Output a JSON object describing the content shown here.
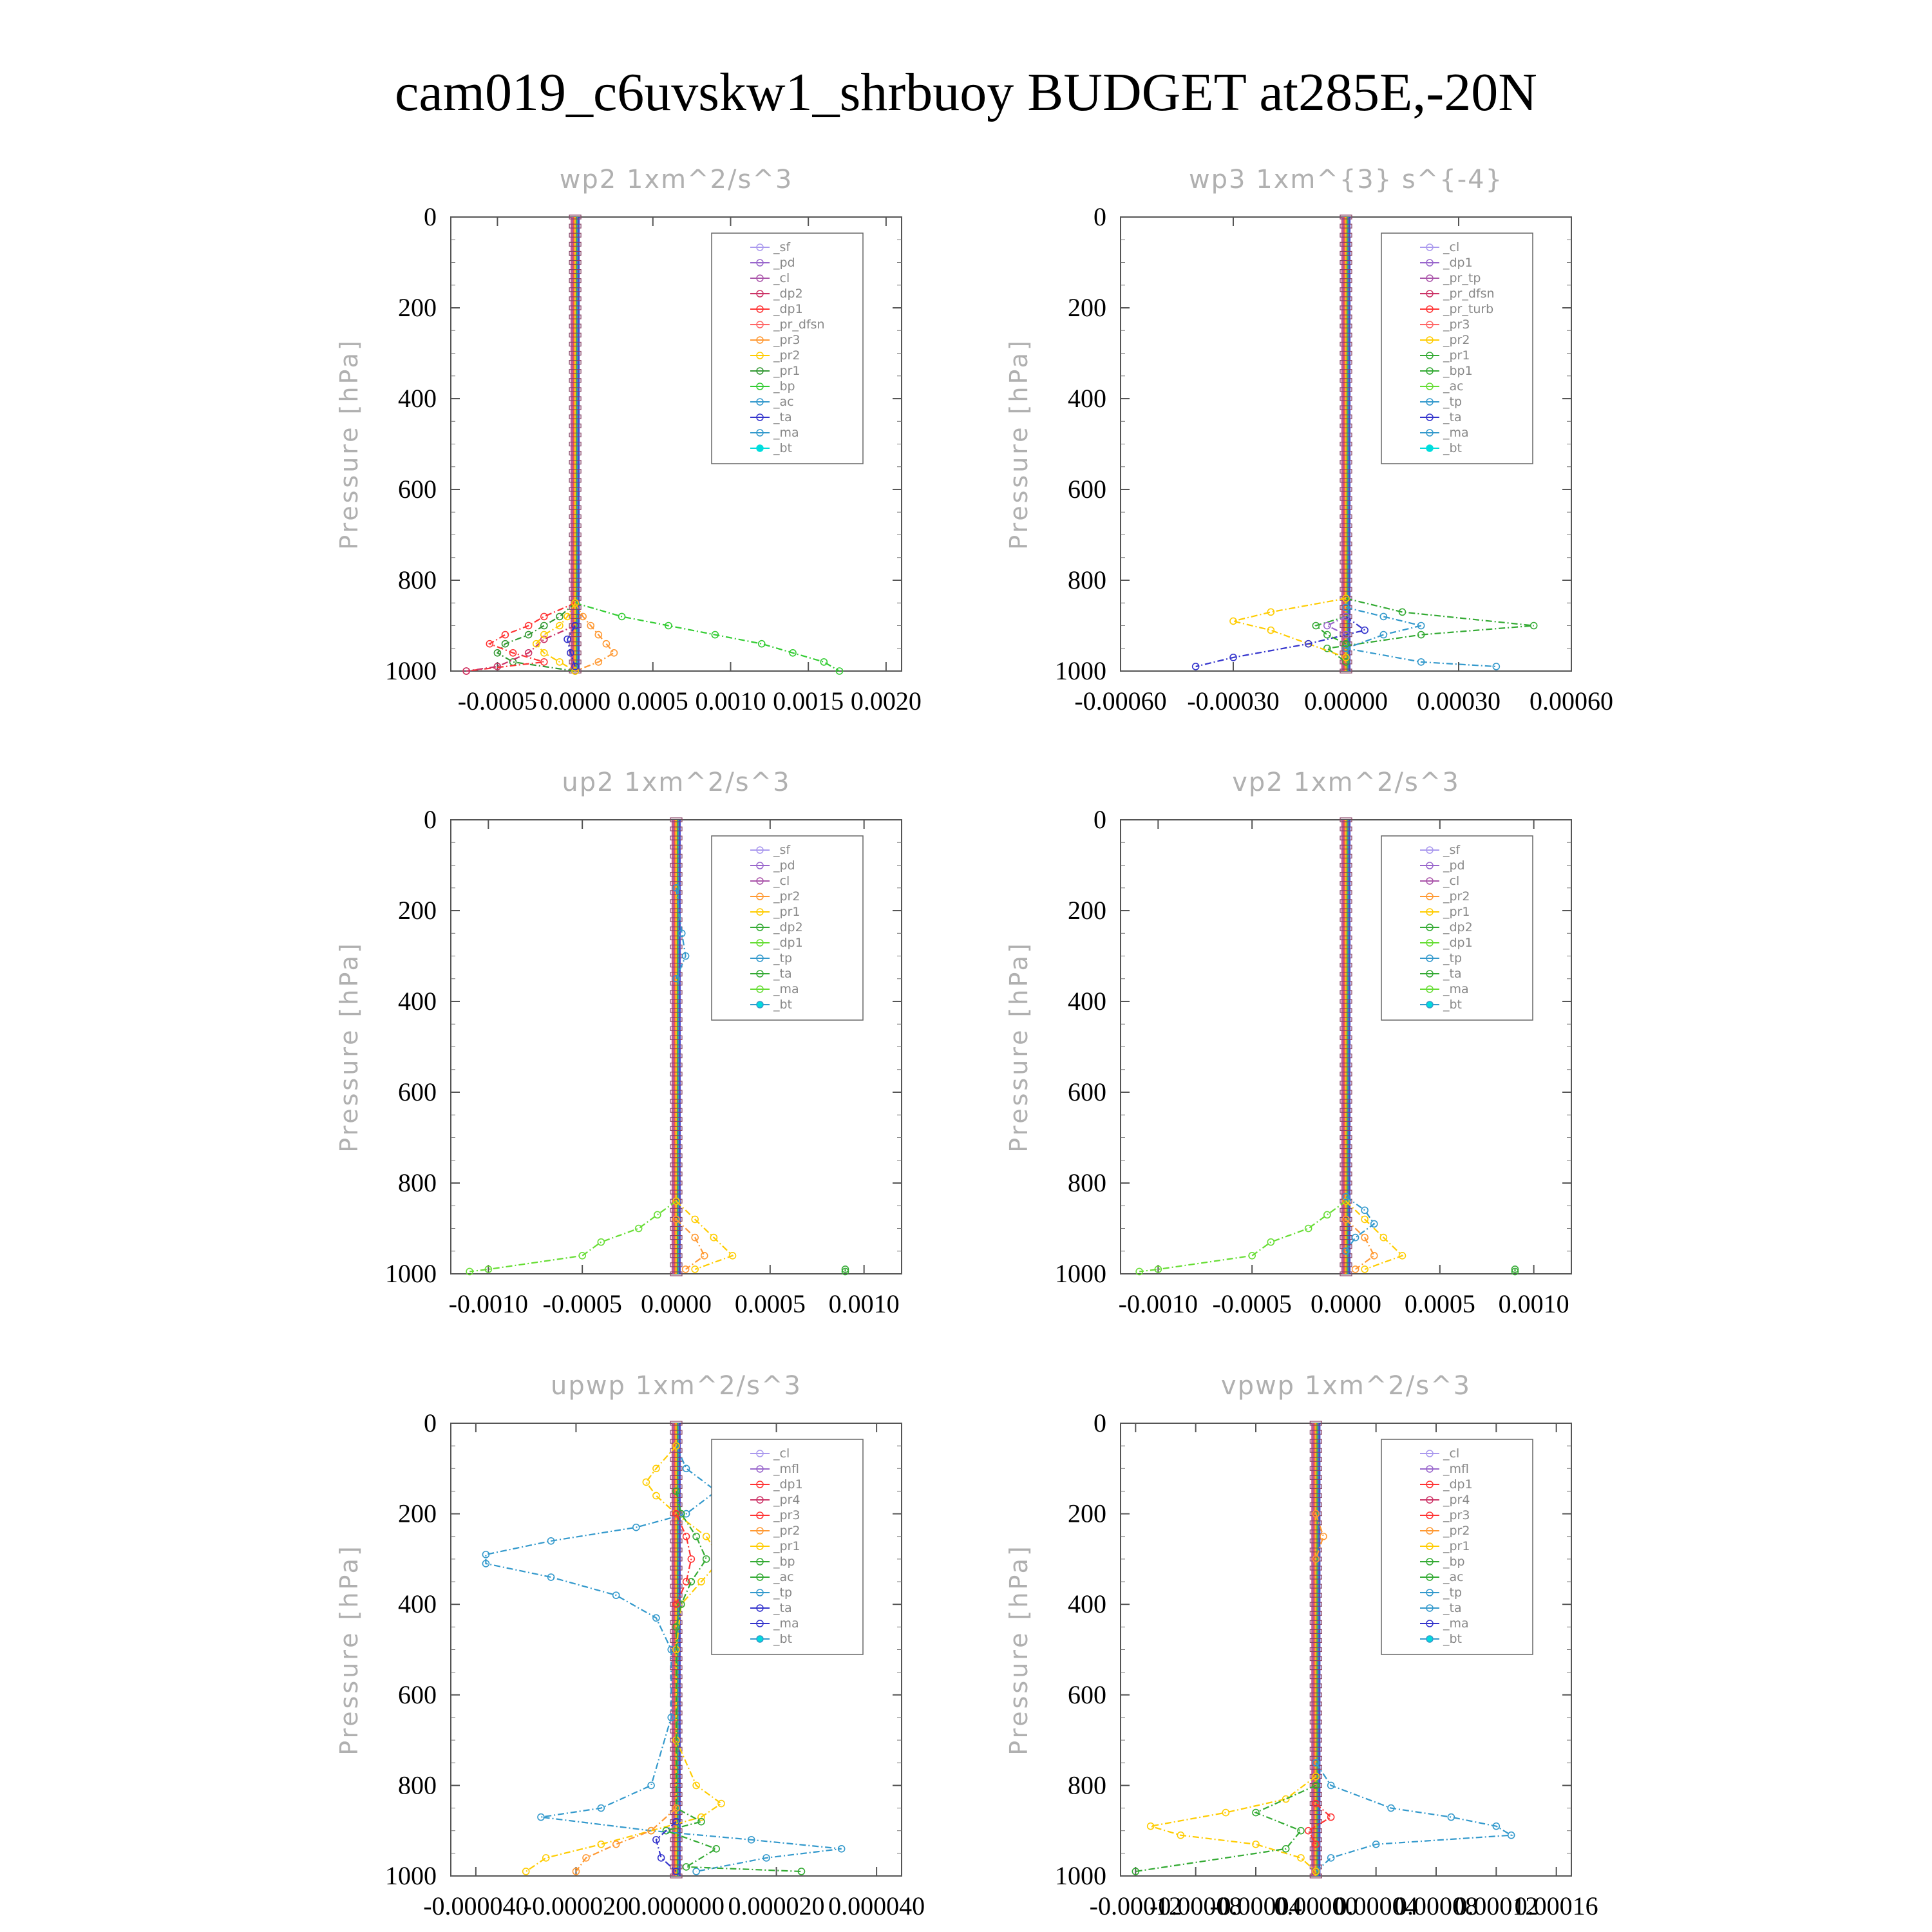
{
  "figure": {
    "title": "cam019_c6uvskw1_shrbuoy  BUDGET at285E,-20N"
  },
  "chart_data": [
    {
      "type": "line",
      "title": "wp2  1xm^2/s^3",
      "ylabel": "Pressure [hPa]",
      "xlim": [
        -0.0008,
        0.0021
      ],
      "ylim": [
        1000,
        0
      ],
      "yticks": [
        "0",
        "200",
        "400",
        "600",
        "800",
        "1000"
      ],
      "xticks": [
        "-0.0005",
        "0.0000",
        "0.0005",
        "0.0010",
        "0.0015",
        "0.0020"
      ],
      "xtick_values": [
        -0.0005,
        0.0,
        0.0005,
        0.001,
        0.0015,
        0.002
      ],
      "legend": [
        "_sf",
        "_pd",
        "_cl",
        "_dp2",
        "_dp1",
        "_pr_dfsn",
        "_pr3",
        "_pr2",
        "_pr1",
        "_bp",
        "_ac",
        "_ta",
        "_ma",
        "_bt"
      ],
      "series": [
        {
          "name": "_bp",
          "color": "#33cc33",
          "p": [
            850,
            880,
            900,
            920,
            940,
            960,
            980,
            1000
          ],
          "x": [
            0,
            0.0003,
            0.0006,
            0.0009,
            0.0012,
            0.0014,
            0.0016,
            0.0017
          ]
        },
        {
          "name": "_pr1",
          "color": "#339933",
          "p": [
            850,
            880,
            900,
            920,
            940,
            960,
            980,
            1000
          ],
          "x": [
            0,
            -0.0001,
            -0.0002,
            -0.0003,
            -0.00045,
            -0.0005,
            -0.0004,
            0
          ]
        },
        {
          "name": "_dp1",
          "color": "#ff3333",
          "p": [
            850,
            880,
            900,
            920,
            940,
            960,
            980,
            1000
          ],
          "x": [
            0,
            -0.0002,
            -0.0003,
            -0.00045,
            -0.00055,
            -0.0004,
            -0.0002,
            -0.0007
          ]
        },
        {
          "name": "_dp2",
          "color": "#cc3366",
          "p": [
            900,
            930,
            960,
            990,
            1000
          ],
          "x": [
            0,
            -0.0002,
            -0.0003,
            -0.0005,
            -0.0007
          ]
        },
        {
          "name": "_pr3",
          "color": "#ff9933",
          "p": [
            850,
            880,
            900,
            920,
            940,
            960,
            980,
            1000
          ],
          "x": [
            0,
            5e-05,
            0.0001,
            0.00015,
            0.0002,
            0.00025,
            0.00015,
            0
          ]
        },
        {
          "name": "_pr2",
          "color": "#ffcc00",
          "p": [
            850,
            880,
            900,
            920,
            940,
            960,
            980,
            1000
          ],
          "x": [
            0,
            -5e-05,
            -0.0001,
            -0.0002,
            -0.00025,
            -0.0002,
            -0.0001,
            0
          ]
        },
        {
          "name": "_ta",
          "color": "#3333cc",
          "p": [
            900,
            930,
            960,
            990
          ],
          "x": [
            0,
            -5e-05,
            -3e-05,
            0
          ]
        }
      ]
    },
    {
      "type": "line",
      "title": "wp3  1xm^{3} s^{-4}",
      "ylabel": "Pressure [hPa]",
      "xlim": [
        -0.0006,
        0.0006
      ],
      "ylim": [
        1000,
        0
      ],
      "yticks": [
        "0",
        "200",
        "400",
        "600",
        "800",
        "1000"
      ],
      "xticks": [
        "-0.00060",
        "-0.00030",
        "0.00000",
        "0.00030",
        "0.00060"
      ],
      "xtick_values": [
        -0.0006,
        -0.0003,
        0.0,
        0.0003,
        0.0006
      ],
      "legend": [
        "_cl",
        "_dp1",
        "_pr_tp",
        "_pr_dfsn",
        "_pr_turb",
        "_pr3",
        "_pr2",
        "_pr1",
        "_bp1",
        "_ac",
        "_tp",
        "_ta",
        "_ma",
        "_bt"
      ],
      "series": [
        {
          "name": "_bp1",
          "color": "#33aa33",
          "p": [
            840,
            870,
            900,
            920,
            950,
            980
          ],
          "x": [
            0,
            0.00015,
            0.0005,
            0.0002,
            -5e-05,
            0
          ]
        },
        {
          "name": "_pr2",
          "color": "#ffcc00",
          "p": [
            840,
            870,
            890,
            910,
            940,
            970
          ],
          "x": [
            0,
            -0.0002,
            -0.0003,
            -0.0002,
            -0.0001,
            0
          ]
        },
        {
          "name": "_tp",
          "color": "#3399cc",
          "p": [
            860,
            880,
            900,
            920,
            950,
            980,
            990
          ],
          "x": [
            0,
            0.0001,
            0.0002,
            0.0001,
            0,
            0.0002,
            0.0004
          ]
        },
        {
          "name": "_ta",
          "color": "#3333cc",
          "p": [
            880,
            910,
            940,
            970,
            990
          ],
          "x": [
            0,
            5e-05,
            -0.0001,
            -0.0003,
            -0.0004
          ]
        },
        {
          "name": "_pr1",
          "color": "#33aa33",
          "p": [
            880,
            900,
            920,
            940
          ],
          "x": [
            0,
            -8e-05,
            -5e-05,
            0
          ]
        },
        {
          "name": "_dp1",
          "color": "#9966cc",
          "p": [
            880,
            900,
            920
          ],
          "x": [
            0,
            -5e-05,
            0
          ]
        }
      ]
    },
    {
      "type": "line",
      "title": "up2  1xm^2/s^3",
      "ylabel": "Pressure [hPa]",
      "xlim": [
        -0.0012,
        0.0012
      ],
      "ylim": [
        1000,
        0
      ],
      "yticks": [
        "0",
        "200",
        "400",
        "600",
        "800",
        "1000"
      ],
      "xticks": [
        "-0.0010",
        "-0.0005",
        "0.0000",
        "0.0005",
        "0.0010"
      ],
      "xtick_values": [
        -0.001,
        -0.0005,
        0.0,
        0.0005,
        0.001
      ],
      "legend": [
        "_sf",
        "_pd",
        "_cl",
        "_pr2",
        "_pr1",
        "_dp2",
        "_dp1",
        "_tp",
        "_ta",
        "_ma",
        "_bt"
      ],
      "series": [
        {
          "name": "_dp1",
          "color": "#66dd33",
          "p": [
            840,
            870,
            900,
            930,
            960,
            990,
            995
          ],
          "x": [
            0,
            -0.0001,
            -0.0002,
            -0.0004,
            -0.0005,
            -0.001,
            -0.0011
          ]
        },
        {
          "name": "_dp2",
          "color": "#33aa33",
          "p": [
            990,
            995
          ],
          "x": [
            0.0009,
            0.0009
          ]
        },
        {
          "name": "_pr1",
          "color": "#ffcc00",
          "p": [
            840,
            880,
            920,
            960,
            990
          ],
          "x": [
            0,
            0.0001,
            0.0002,
            0.0003,
            0.0001
          ]
        },
        {
          "name": "_pr2",
          "color": "#ff9933",
          "p": [
            880,
            920,
            960,
            990
          ],
          "x": [
            0,
            0.0001,
            0.00015,
            5e-05
          ]
        },
        {
          "name": "_tp",
          "color": "#3399cc",
          "p": [
            150,
            250,
            300,
            350
          ],
          "x": [
            0,
            3e-05,
            5e-05,
            0
          ]
        }
      ]
    },
    {
      "type": "line",
      "title": "vp2  1xm^2/s^3",
      "ylabel": "Pressure [hPa]",
      "xlim": [
        -0.0012,
        0.0012
      ],
      "ylim": [
        1000,
        0
      ],
      "yticks": [
        "0",
        "200",
        "400",
        "600",
        "800",
        "1000"
      ],
      "xticks": [
        "-0.0010",
        "-0.0005",
        "0.0000",
        "0.0005",
        "0.0010"
      ],
      "xtick_values": [
        -0.001,
        -0.0005,
        0.0,
        0.0005,
        0.001
      ],
      "legend": [
        "_sf",
        "_pd",
        "_cl",
        "_pr2",
        "_pr1",
        "_dp2",
        "_dp1",
        "_tp",
        "_ta",
        "_ma",
        "_bt"
      ],
      "series": [
        {
          "name": "_dp1",
          "color": "#66dd33",
          "p": [
            840,
            870,
            900,
            930,
            960,
            990,
            995
          ],
          "x": [
            0,
            -0.0001,
            -0.0002,
            -0.0004,
            -0.0005,
            -0.001,
            -0.0011
          ]
        },
        {
          "name": "_dp2",
          "color": "#33aa33",
          "p": [
            990,
            995
          ],
          "x": [
            0.0009,
            0.0009
          ]
        },
        {
          "name": "_pr1",
          "color": "#ffcc00",
          "p": [
            840,
            880,
            920,
            960,
            990
          ],
          "x": [
            0,
            0.0001,
            0.0002,
            0.0003,
            0.0001
          ]
        },
        {
          "name": "_pr2",
          "color": "#ff9933",
          "p": [
            880,
            920,
            960,
            990
          ],
          "x": [
            0,
            0.0001,
            0.00015,
            5e-05
          ]
        },
        {
          "name": "_tp",
          "color": "#3399cc",
          "p": [
            830,
            860,
            890,
            920,
            950
          ],
          "x": [
            0,
            0.0001,
            0.00015,
            5e-05,
            0
          ]
        }
      ]
    },
    {
      "type": "line",
      "title": "upwp  1xm^2/s^3",
      "ylabel": "Pressure [hPa]",
      "xlim": [
        -4.5e-05,
        4.5e-05
      ],
      "ylim": [
        1000,
        0
      ],
      "yticks": [
        "0",
        "200",
        "400",
        "600",
        "800",
        "1000"
      ],
      "xticks": [
        "-0.000040",
        "-0.000020",
        "0.000000",
        "0.000020",
        "0.000040"
      ],
      "xtick_values": [
        -4e-05,
        -2e-05,
        0.0,
        2e-05,
        4e-05
      ],
      "legend": [
        "_cl",
        "_mfl",
        "_dp1",
        "_pr4",
        "_pr3",
        "_pr2",
        "_pr1",
        "_bp",
        "_ac",
        "_tp",
        "_ta",
        "_ma",
        "_bt"
      ],
      "series": [
        {
          "name": "_tp",
          "color": "#3399cc",
          "p": [
            50,
            100,
            150,
            200,
            230,
            260,
            290,
            310,
            340,
            380,
            430,
            500,
            650,
            800,
            850,
            870,
            900,
            920,
            940,
            960,
            990
          ],
          "x": [
            0,
            2e-06,
            8e-06,
            2e-06,
            -8e-06,
            -2.5e-05,
            -3.8e-05,
            -3.8e-05,
            -2.5e-05,
            -1.2e-05,
            -4e-06,
            -1e-06,
            -1e-06,
            -5e-06,
            -1.5e-05,
            -2.7e-05,
            -5e-06,
            1.5e-05,
            3.3e-05,
            1.8e-05,
            4e-06
          ]
        },
        {
          "name": "_pr1",
          "color": "#ffcc00",
          "p": [
            50,
            100,
            130,
            160,
            200,
            250,
            300,
            350,
            400,
            500,
            700,
            800,
            840,
            870,
            900,
            930,
            960,
            990
          ],
          "x": [
            0,
            -4e-06,
            -6e-06,
            -4e-06,
            0,
            6e-06,
            9e-06,
            5e-06,
            1e-06,
            0,
            0,
            4e-06,
            9e-06,
            5e-06,
            -5e-06,
            -1.5e-05,
            -2.6e-05,
            -3e-05
          ]
        },
        {
          "name": "_bp",
          "color": "#33aa33",
          "p": [
            150,
            200,
            250,
            300,
            350,
            400,
            450,
            850,
            880,
            900,
            940,
            980,
            990
          ],
          "x": [
            0,
            1e-06,
            4e-06,
            6e-06,
            3e-06,
            1e-06,
            0,
            0,
            5e-06,
            -2e-06,
            8e-06,
            2e-06,
            2.5e-05
          ]
        },
        {
          "name": "_pr2",
          "color": "#ff9933",
          "p": [
            850,
            900,
            930,
            960,
            990
          ],
          "x": [
            0,
            -5e-06,
            -1.2e-05,
            -1.8e-05,
            -2e-05
          ]
        },
        {
          "name": "_dp1",
          "color": "#ff3333",
          "p": [
            200,
            250,
            300,
            350,
            400
          ],
          "x": [
            0,
            2e-06,
            3e-06,
            2e-06,
            0
          ]
        },
        {
          "name": "_ta",
          "color": "#3333cc",
          "p": [
            880,
            920,
            960,
            990
          ],
          "x": [
            0,
            -4e-06,
            -3e-06,
            0
          ]
        }
      ]
    },
    {
      "type": "line",
      "title": "vpwp  1xm^2/s^3",
      "ylabel": "Pressure [hPa]",
      "xlim": [
        -0.00013,
        0.00017
      ],
      "ylim": [
        1000,
        0
      ],
      "yticks": [
        "0",
        "200",
        "400",
        "600",
        "800",
        "1000"
      ],
      "xticks": [
        "-0.00012",
        "-0.00008",
        "-0.00004",
        "0.00000",
        "0.00004",
        "0.00008",
        "0.00012",
        "0.00016"
      ],
      "xtick_values": [
        -0.00012,
        -8e-05,
        -4e-05,
        0.0,
        4e-05,
        8e-05,
        0.00012,
        0.00016
      ],
      "legend": [
        "_cl",
        "_mfl",
        "_dp1",
        "_pr4",
        "_pr3",
        "_pr2",
        "_pr1",
        "_bp",
        "_ac",
        "_tp",
        "_ta",
        "_ma",
        "_bt"
      ],
      "series": [
        {
          "name": "_tp",
          "color": "#3399cc",
          "p": [
            750,
            800,
            850,
            870,
            890,
            910,
            930,
            960,
            990
          ],
          "x": [
            0,
            1e-05,
            5e-05,
            9e-05,
            0.00012,
            0.00013,
            4e-05,
            1e-05,
            0
          ]
        },
        {
          "name": "_pr1",
          "color": "#ffcc00",
          "p": [
            780,
            830,
            860,
            890,
            910,
            930,
            960,
            990
          ],
          "x": [
            0,
            -2e-05,
            -6e-05,
            -0.00011,
            -9e-05,
            -4e-05,
            -1e-05,
            0
          ]
        },
        {
          "name": "_bp",
          "color": "#33aa33",
          "p": [
            800,
            860,
            900,
            940,
            990
          ],
          "x": [
            0,
            -4e-05,
            -1e-05,
            -2e-05,
            -0.00012
          ]
        },
        {
          "name": "_dp1",
          "color": "#ff3333",
          "p": [
            840,
            870,
            900,
            930
          ],
          "x": [
            0,
            1e-05,
            -5e-06,
            0
          ]
        },
        {
          "name": "_pr2",
          "color": "#ff9933",
          "p": [
            200,
            250,
            300
          ],
          "x": [
            0,
            5e-06,
            0
          ]
        }
      ]
    }
  ]
}
